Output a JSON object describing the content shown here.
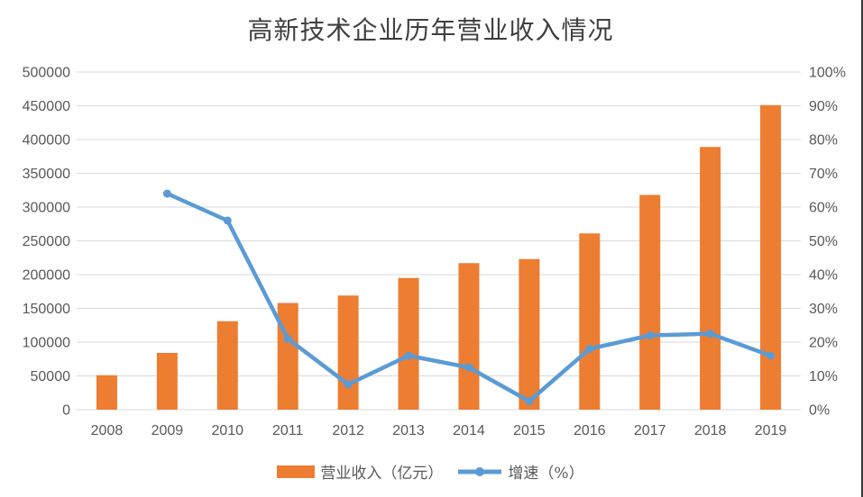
{
  "title": "高新技术企业历年营业收入情况",
  "chart_data": {
    "type": "bar",
    "subtype": "bar-line-combo",
    "title": "高新技术企业历年营业收入情况",
    "categories": [
      "2008",
      "2009",
      "2010",
      "2011",
      "2012",
      "2013",
      "2014",
      "2015",
      "2016",
      "2017",
      "2018",
      "2019"
    ],
    "series": [
      {
        "name": "营业收入（亿元）",
        "type": "bar",
        "axis": "left",
        "color": "#ED7D31",
        "values": [
          51000,
          84000,
          131000,
          158000,
          169000,
          195000,
          217000,
          223000,
          261000,
          318000,
          389000,
          451000
        ]
      },
      {
        "name": "增速（%）",
        "type": "line",
        "axis": "right",
        "color": "#5B9BD5",
        "values": [
          null,
          64,
          56,
          21,
          7.5,
          16,
          12.5,
          2.5,
          18,
          22,
          22.5,
          16
        ]
      }
    ],
    "left_axis": {
      "min": 0,
      "max": 500000,
      "step": 50000,
      "tick_labels": [
        "0",
        "50000",
        "100000",
        "150000",
        "200000",
        "250000",
        "300000",
        "350000",
        "400000",
        "450000",
        "500000"
      ]
    },
    "right_axis": {
      "min": 0,
      "max": 100,
      "step": 10,
      "tick_labels": [
        "0%",
        "10%",
        "20%",
        "30%",
        "40%",
        "50%",
        "60%",
        "70%",
        "80%",
        "90%",
        "100%"
      ]
    },
    "grid": true,
    "gridline_color": "#D9D9D9",
    "text_color": "#595959",
    "legend_position": "bottom"
  },
  "legend": {
    "items": [
      {
        "label": "营业收入（亿元）",
        "swatch": "bar",
        "color": "#ED7D31"
      },
      {
        "label": "增速（%）",
        "swatch": "line",
        "color": "#5B9BD5"
      }
    ]
  }
}
